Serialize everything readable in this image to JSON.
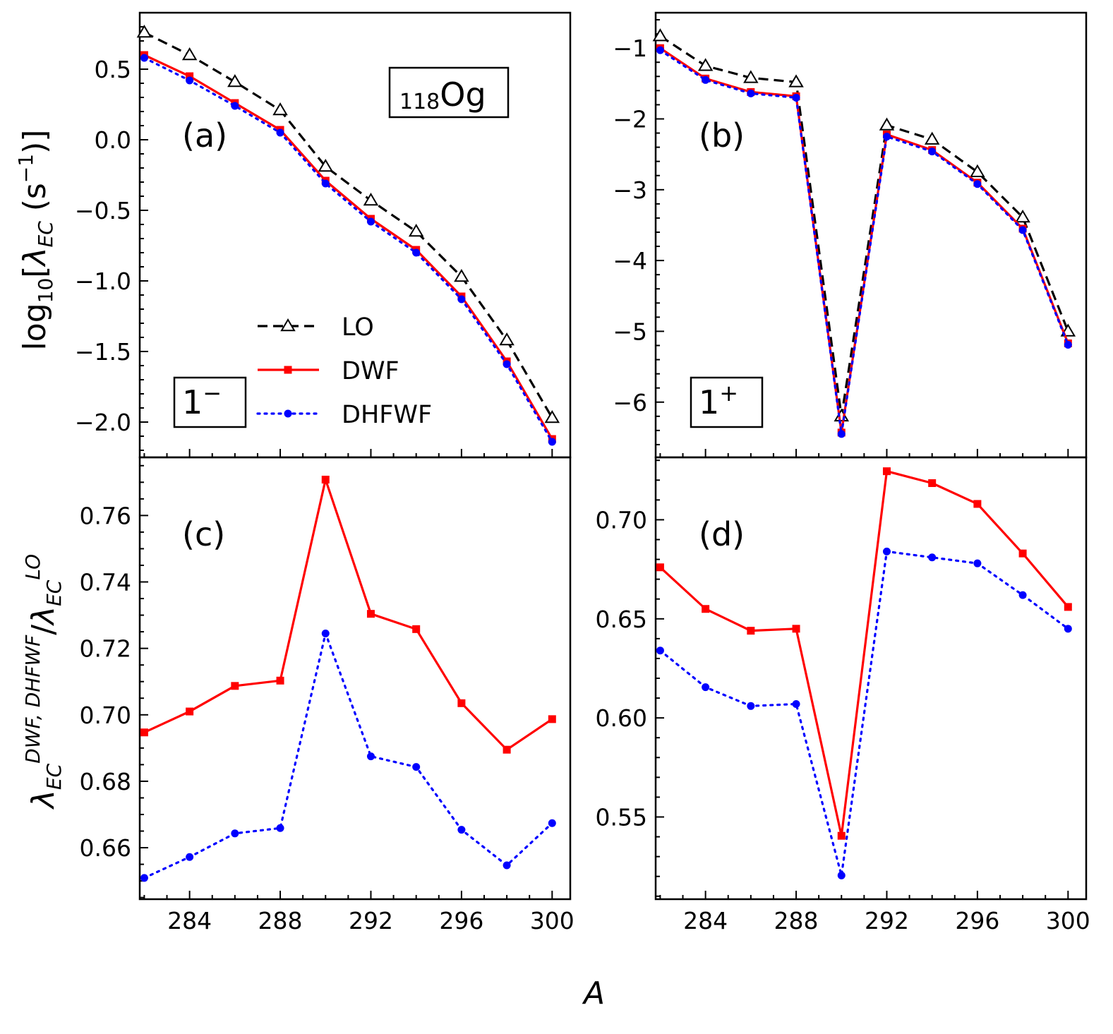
{
  "figure": {
    "nucleus_label": {
      "sub": "118",
      "main": "Og"
    },
    "xlabel": "A",
    "ylabel_top": {
      "pre": "log",
      "sub": "10",
      "open": "[",
      "lam": "λ",
      "lamsub": "EC",
      "unit_open": " (s",
      "sup": "−1",
      "close": ")]"
    },
    "ylabel_bottom": {
      "lam": "λ",
      "sub": "EC",
      "sup": "DWF, DHFWF",
      "slash": "/",
      "lam2": "λ",
      "sub2": "EC",
      "sup2": "LO"
    },
    "legend": [
      {
        "key": "LO",
        "label": "LO"
      },
      {
        "key": "DWF",
        "label": "DWF"
      },
      {
        "key": "DHFWF",
        "label": "DHFWF"
      }
    ],
    "box_1minus": {
      "main": "1",
      "sup": "−"
    },
    "box_1plus": {
      "main": "1",
      "sup": "+"
    }
  },
  "series_style": {
    "LO": {
      "color": "#000000",
      "dash": "14,8",
      "marker": "triangle-open"
    },
    "DWF": {
      "color": "#ff0000",
      "dash": "",
      "marker": "square"
    },
    "DHFWF": {
      "color": "#0000ff",
      "dash": "3,7",
      "marker": "circle"
    }
  },
  "chart_data": [
    {
      "panel": "(a)",
      "type": "line",
      "x": [
        282,
        284,
        286,
        288,
        290,
        292,
        294,
        296,
        298,
        300
      ],
      "xticks": [
        284,
        288,
        292,
        296,
        300
      ],
      "xlim": [
        281.8,
        300.8
      ],
      "ylim": [
        -2.25,
        0.9
      ],
      "yticks": [
        0.5,
        0.0,
        -0.5,
        -1.0,
        -1.5,
        -2.0
      ],
      "ytick_labels": [
        "0.5",
        "0.0",
        "−0.5",
        "−1.0",
        "−1.5",
        "−2.0"
      ],
      "series": [
        {
          "name": "LO",
          "values": [
            0.76,
            0.6,
            0.41,
            0.21,
            -0.19,
            -0.43,
            -0.65,
            -0.97,
            -1.42,
            -1.97
          ]
        },
        {
          "name": "DWF",
          "values": [
            0.6,
            0.45,
            0.26,
            0.07,
            -0.29,
            -0.56,
            -0.78,
            -1.11,
            -1.57,
            -2.12
          ]
        },
        {
          "name": "DHFWF",
          "values": [
            0.58,
            0.42,
            0.24,
            0.05,
            -0.31,
            -0.58,
            -0.8,
            -1.13,
            -1.59,
            -2.14
          ]
        }
      ]
    },
    {
      "panel": "(b)",
      "type": "line",
      "x": [
        282,
        284,
        286,
        288,
        290,
        292,
        294,
        296,
        298,
        300
      ],
      "xticks": [
        284,
        288,
        292,
        296,
        300
      ],
      "xlim": [
        281.8,
        300.8
      ],
      "ylim": [
        -6.78,
        -0.5
      ],
      "yticks": [
        -1,
        -2,
        -3,
        -4,
        -5,
        -6
      ],
      "ytick_labels": [
        "−1",
        "−2",
        "−3",
        "−4",
        "−5",
        "−6"
      ],
      "series": [
        {
          "name": "LO",
          "values": [
            -0.83,
            -1.25,
            -1.42,
            -1.48,
            -6.2,
            -2.09,
            -2.29,
            -2.75,
            -3.39,
            -5.0
          ]
        },
        {
          "name": "DWF",
          "values": [
            -1.0,
            -1.43,
            -1.62,
            -1.68,
            -6.43,
            -2.22,
            -2.44,
            -2.9,
            -3.55,
            -5.17
          ]
        },
        {
          "name": "DHFWF",
          "values": [
            -1.03,
            -1.45,
            -1.64,
            -1.7,
            -6.45,
            -2.25,
            -2.46,
            -2.92,
            -3.57,
            -5.19
          ]
        }
      ]
    },
    {
      "panel": "(c)",
      "type": "line",
      "x": [
        282,
        284,
        286,
        288,
        290,
        292,
        294,
        296,
        298,
        300
      ],
      "xticks": [
        284,
        288,
        292,
        296,
        300
      ],
      "xlim": [
        281.8,
        300.8
      ],
      "ylim": [
        0.6445,
        0.7775
      ],
      "yticks": [
        0.76,
        0.74,
        0.72,
        0.7,
        0.68,
        0.66
      ],
      "ytick_labels": [
        "0.76",
        "0.74",
        "0.72",
        "0.70",
        "0.68",
        "0.66"
      ],
      "series": [
        {
          "name": "DWF",
          "values": [
            0.6947,
            0.701,
            0.7087,
            0.7103,
            0.7708,
            0.7304,
            0.7258,
            0.7035,
            0.6895,
            0.6987
          ]
        },
        {
          "name": "DHFWF",
          "values": [
            0.6509,
            0.6572,
            0.6643,
            0.6659,
            0.7245,
            0.6875,
            0.6843,
            0.6654,
            0.6547,
            0.6674
          ]
        }
      ]
    },
    {
      "panel": "(d)",
      "type": "line",
      "x": [
        282,
        284,
        286,
        288,
        290,
        292,
        294,
        296,
        298,
        300
      ],
      "xticks": [
        284,
        288,
        292,
        296,
        300
      ],
      "xlim": [
        281.8,
        300.8
      ],
      "ylim": [
        0.5085,
        0.7315
      ],
      "yticks": [
        0.7,
        0.65,
        0.6,
        0.55
      ],
      "ytick_labels": [
        "0.70",
        "0.65",
        "0.60",
        "0.55"
      ],
      "series": [
        {
          "name": "DWF",
          "values": [
            0.676,
            0.655,
            0.644,
            0.645,
            0.5405,
            0.7245,
            0.7185,
            0.708,
            0.683,
            0.656
          ]
        },
        {
          "name": "DHFWF",
          "values": [
            0.634,
            0.6155,
            0.606,
            0.607,
            0.5205,
            0.684,
            0.681,
            0.678,
            0.662,
            0.645
          ]
        }
      ]
    }
  ]
}
